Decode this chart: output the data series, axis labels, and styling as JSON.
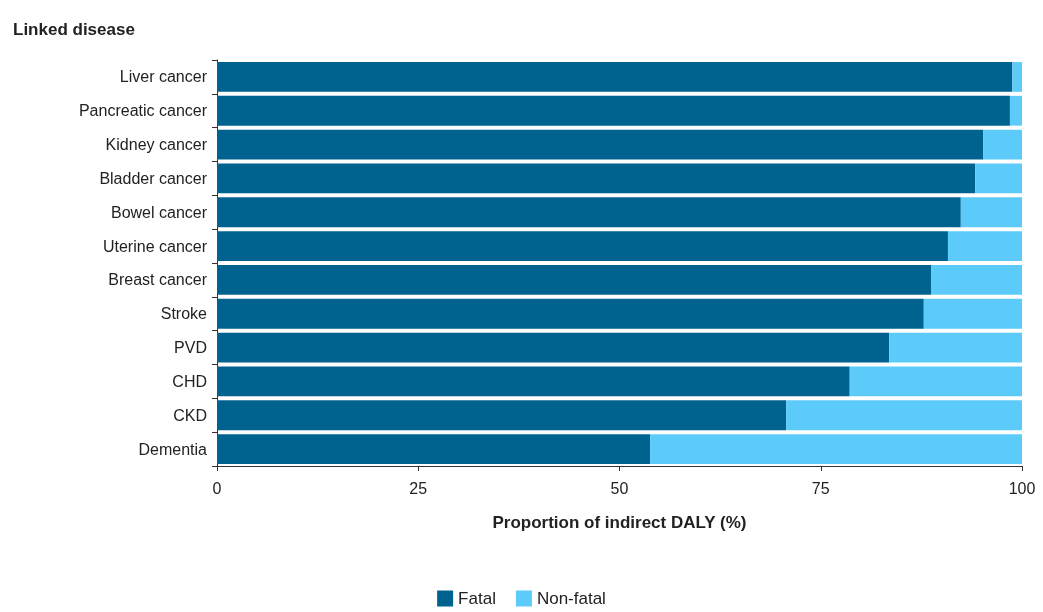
{
  "chart_data": {
    "type": "bar",
    "orientation": "horizontal",
    "stacked": true,
    "title": "Linked disease",
    "xlabel": "Proportion of indirect DALY (%)",
    "categories": [
      "Liver cancer",
      "Pancreatic cancer",
      "Kidney cancer",
      "Bladder cancer",
      "Bowel cancer",
      "Uterine cancer",
      "Breast cancer",
      "Stroke",
      "PVD",
      "CHD",
      "CKD",
      "Dementia"
    ],
    "series": [
      {
        "name": "Fatal",
        "color": "#00628f",
        "values": [
          98.8,
          98.5,
          95.2,
          94.2,
          92.4,
          90.8,
          88.7,
          87.8,
          83.5,
          78.6,
          70.7,
          53.8
        ]
      },
      {
        "name": "Non-fatal",
        "color": "#5ccbfa",
        "values": [
          1.2,
          1.5,
          4.8,
          5.8,
          7.6,
          9.2,
          11.3,
          12.2,
          16.5,
          21.4,
          29.3,
          46.2
        ]
      }
    ],
    "xlim": [
      0,
      100
    ],
    "xticks": [
      0,
      25,
      50,
      75,
      100
    ],
    "grid": false,
    "legend": "bottom"
  }
}
